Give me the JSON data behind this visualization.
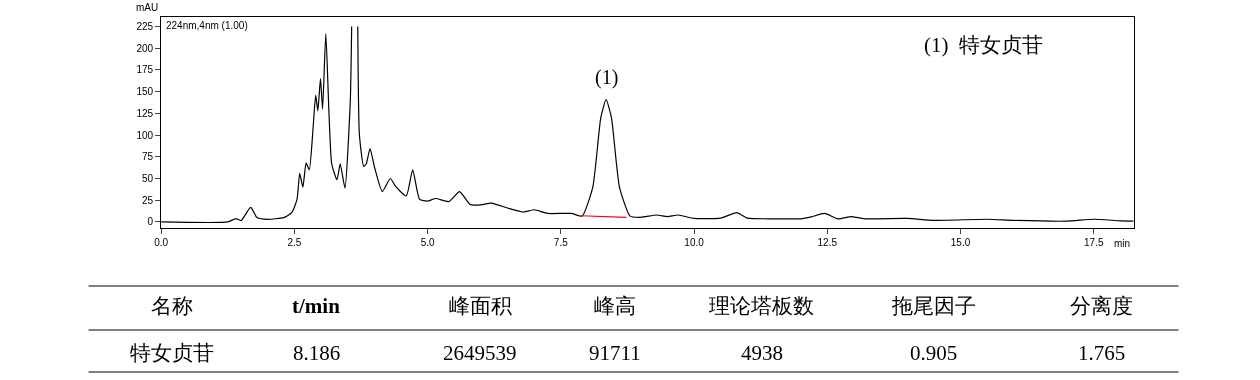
{
  "chart_data": {
    "type": "line",
    "xlabel": "min",
    "ylabel": "mAU",
    "xlim": [
      0,
      18.25
    ],
    "ylim": [
      -7,
      236
    ],
    "xticks": [
      {
        "value": 0,
        "label": "0.0"
      },
      {
        "value": 2.5,
        "label": "2.5"
      },
      {
        "value": 5,
        "label": "5.0"
      },
      {
        "value": 7.5,
        "label": "7.5"
      },
      {
        "value": 10,
        "label": "10.0"
      },
      {
        "value": 12.5,
        "label": "12.5"
      },
      {
        "value": 15,
        "label": "15.0"
      },
      {
        "value": 17.5,
        "label": "17.5"
      }
    ],
    "yticks": [
      0,
      25,
      50,
      75,
      100,
      125,
      150,
      175,
      200,
      225
    ],
    "marker": "none",
    "line_style": "solid",
    "series": [
      {
        "color": "#000000",
        "x": [
          0,
          1.25,
          1.4,
          1.5,
          1.68,
          1.8,
          2.0,
          2.3,
          2.45,
          2.55,
          2.6,
          2.66,
          2.72,
          2.78,
          2.85,
          2.9,
          2.94,
          2.99,
          3.03,
          3.09,
          3.2,
          3.3,
          3.36,
          3.45,
          3.55,
          3.575,
          3.6,
          3.69,
          3.72,
          3.8,
          3.85,
          3.92,
          4.0,
          4.15,
          4.3,
          4.4,
          4.6,
          4.72,
          4.85,
          5.0,
          5.15,
          5.4,
          5.6,
          5.8,
          6.0,
          6.2,
          6.5,
          6.8,
          7.0,
          7.25,
          7.7,
          7.9,
          8.1,
          8.25,
          8.35,
          8.45,
          8.6,
          8.8,
          9.0,
          9.3,
          9.5,
          9.7,
          10.0,
          10.5,
          10.8,
          11.0,
          11.5,
          12.0,
          12.2,
          12.45,
          12.7,
          12.95,
          13.2,
          14.0,
          14.5,
          15.5,
          16.0,
          17.0,
          17.5,
          18.0,
          18.25
        ],
        "values": [
          0,
          0,
          3.8,
          1.5,
          16.7,
          5,
          3,
          5,
          10.6,
          26,
          56,
          40,
          68,
          60,
          107,
          146,
          128,
          165,
          130,
          217,
          67,
          48.5,
          67,
          39,
          140,
          225,
          null,
          225,
          101,
          64,
          67,
          84.5,
          64,
          35,
          50,
          41,
          30,
          60,
          26,
          24,
          27,
          23.5,
          35,
          20,
          19.7,
          21.6,
          16,
          11.4,
          14,
          9.8,
          9.8,
          6.7,
          40,
          120,
          141,
          120,
          40,
          6.7,
          5.3,
          8,
          6.2,
          8,
          4,
          4.4,
          10.7,
          4.4,
          3.6,
          3.6,
          5.8,
          9.8,
          3.6,
          6.2,
          3.6,
          4,
          1.8,
          3.1,
          1.8,
          0.9,
          3.1,
          1.3,
          1
        ]
      },
      {
        "color": "#ff0000",
        "x": [
          7.88,
          8.73
        ],
        "values": [
          7.1,
          5.3
        ]
      }
    ],
    "annotations": [
      "224nm,4nm (1.00)",
      {
        "text": "(1)",
        "x": 8.35,
        "y": 141
      },
      "(1)  特女贞苷",
      "名称",
      "t/min",
      "峰面积",
      "峰高",
      "理论塔板数",
      "拖尾因子",
      "分离度",
      "特女贞苷",
      "8.186",
      "2649539",
      "91711",
      "4938",
      "0.905",
      "1.765"
    ]
  }
}
